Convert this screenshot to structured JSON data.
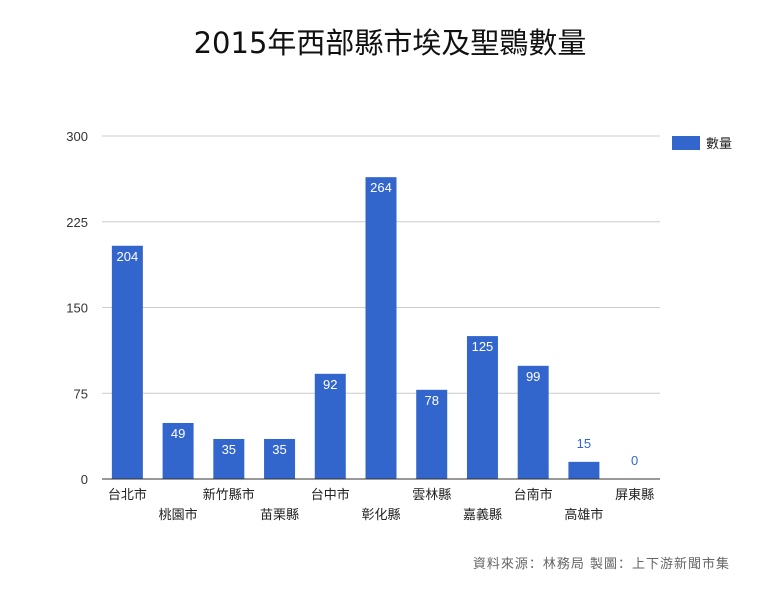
{
  "chart_data": {
    "type": "bar",
    "title": "2015年西部縣市埃及聖䴉數量",
    "categories": [
      "台北市",
      "桃園市",
      "新竹縣市",
      "苗栗縣",
      "台中市",
      "彰化縣",
      "雲林縣",
      "嘉義縣",
      "台南市",
      "高雄市",
      "屏東縣"
    ],
    "series": [
      {
        "name": "數量",
        "values": [
          204,
          49,
          35,
          35,
          92,
          264,
          78,
          125,
          99,
          15,
          0
        ]
      }
    ],
    "ylim": [
      0,
      300
    ],
    "yticks": [
      0,
      75,
      150,
      225,
      300
    ],
    "grid": true,
    "legend_position": "right",
    "bar_color": "#3366cc"
  },
  "source": "資料來源：林務局  製圖：上下游新聞市集"
}
